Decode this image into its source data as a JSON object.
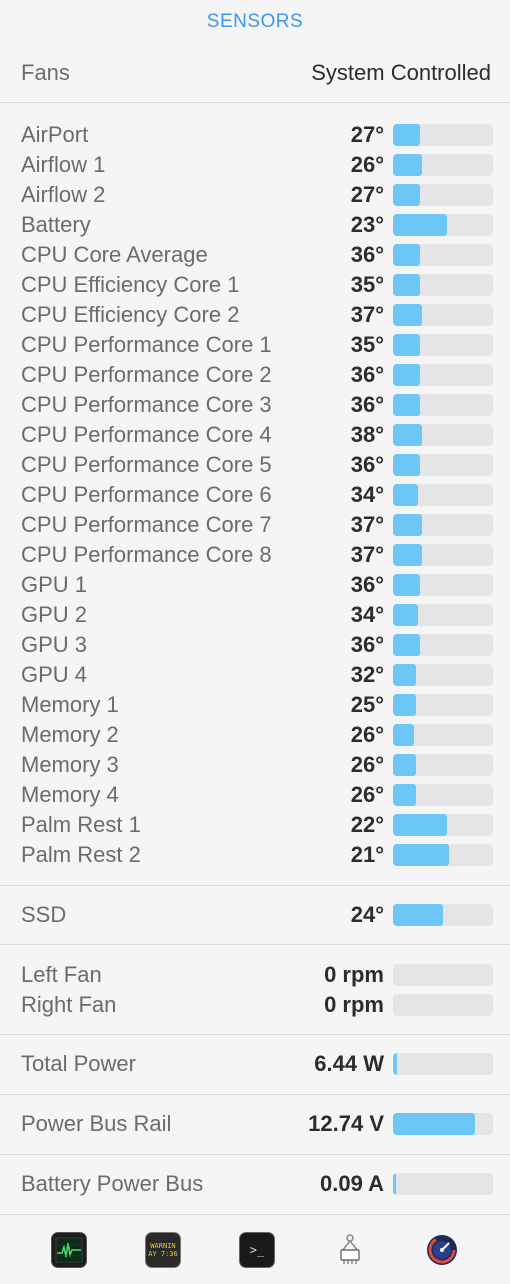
{
  "header": {
    "title": "SENSORS"
  },
  "fans": {
    "label": "Fans",
    "mode": "System Controlled"
  },
  "temperatures": [
    {
      "name": "AirPort",
      "value": "27°",
      "level": 0.27
    },
    {
      "name": "Airflow 1",
      "value": "26°",
      "level": 0.29
    },
    {
      "name": "Airflow 2",
      "value": "27°",
      "level": 0.27
    },
    {
      "name": "Battery",
      "value": "23°",
      "level": 0.54
    },
    {
      "name": "CPU Core Average",
      "value": "36°",
      "level": 0.27
    },
    {
      "name": "CPU Efficiency Core 1",
      "value": "35°",
      "level": 0.27
    },
    {
      "name": "CPU Efficiency Core 2",
      "value": "37°",
      "level": 0.29
    },
    {
      "name": "CPU Performance Core 1",
      "value": "35°",
      "level": 0.27
    },
    {
      "name": "CPU Performance Core 2",
      "value": "36°",
      "level": 0.27
    },
    {
      "name": "CPU Performance Core 3",
      "value": "36°",
      "level": 0.27
    },
    {
      "name": "CPU Performance Core 4",
      "value": "38°",
      "level": 0.29
    },
    {
      "name": "CPU Performance Core 5",
      "value": "36°",
      "level": 0.27
    },
    {
      "name": "CPU Performance Core 6",
      "value": "34°",
      "level": 0.25
    },
    {
      "name": "CPU Performance Core 7",
      "value": "37°",
      "level": 0.29
    },
    {
      "name": "CPU Performance Core 8",
      "value": "37°",
      "level": 0.29
    },
    {
      "name": "GPU 1",
      "value": "36°",
      "level": 0.27
    },
    {
      "name": "GPU 2",
      "value": "34°",
      "level": 0.25
    },
    {
      "name": "GPU 3",
      "value": "36°",
      "level": 0.27
    },
    {
      "name": "GPU 4",
      "value": "32°",
      "level": 0.23
    },
    {
      "name": "Memory 1",
      "value": "25°",
      "level": 0.23
    },
    {
      "name": "Memory 2",
      "value": "26°",
      "level": 0.21
    },
    {
      "name": "Memory 3",
      "value": "26°",
      "level": 0.23
    },
    {
      "name": "Memory 4",
      "value": "26°",
      "level": 0.23
    },
    {
      "name": "Palm Rest 1",
      "value": "22°",
      "level": 0.54
    },
    {
      "name": "Palm Rest 2",
      "value": "21°",
      "level": 0.56
    }
  ],
  "ssd": [
    {
      "name": "SSD",
      "value": "24°",
      "level": 0.5
    }
  ],
  "fan_speeds": [
    {
      "name": "Left Fan",
      "value": "0 rpm",
      "level": 0
    },
    {
      "name": "Right Fan",
      "value": "0 rpm",
      "level": 0
    }
  ],
  "power": [
    {
      "name": "Total Power",
      "value": "6.44 W",
      "level": 0.04
    }
  ],
  "voltage": [
    {
      "name": "Power Bus Rail",
      "value": "12.74 V",
      "level": 0.82
    }
  ],
  "current": [
    {
      "name": "Battery Power Bus",
      "value": "0.09 A",
      "level": 0.03
    }
  ],
  "footer": {
    "icons": [
      {
        "name": "activity-monitor-icon"
      },
      {
        "name": "console-icon",
        "text1": "WARNIN",
        "text2": "AY 7:36"
      },
      {
        "name": "terminal-icon",
        "text": ">_"
      },
      {
        "name": "system-information-icon"
      },
      {
        "name": "istat-menus-icon"
      }
    ]
  },
  "colors": {
    "accent": "#3b97ee",
    "bar_fill": "#6cc6f6",
    "bar_track": "#e5e4e6"
  }
}
